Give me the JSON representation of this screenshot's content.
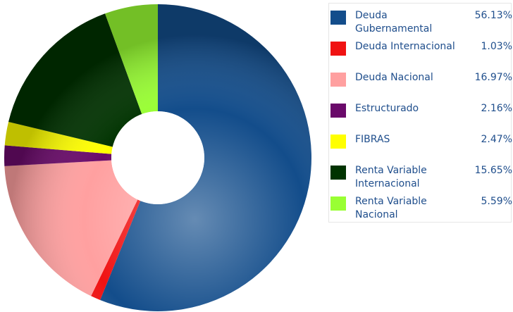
{
  "chart_data": {
    "type": "donut",
    "categories": [
      "Deuda Gubernamental",
      "Deuda Internacional",
      "Deuda Nacional",
      "Estructurado",
      "FIBRAS",
      "Renta Variable Internacional",
      "Renta Variable Nacional"
    ],
    "values": [
      56.13,
      1.03,
      16.97,
      2.16,
      2.47,
      15.65,
      5.59
    ],
    "value_labels": [
      "56.13%",
      "1.03%",
      "16.97%",
      "2.16%",
      "2.47%",
      "15.65%",
      "5.59%"
    ],
    "colors": [
      "#134d8b",
      "#f01212",
      "#ffa0a0",
      "#6a0a6a",
      "#ffff00",
      "#003300",
      "#99ff33"
    ],
    "legend": "right"
  }
}
